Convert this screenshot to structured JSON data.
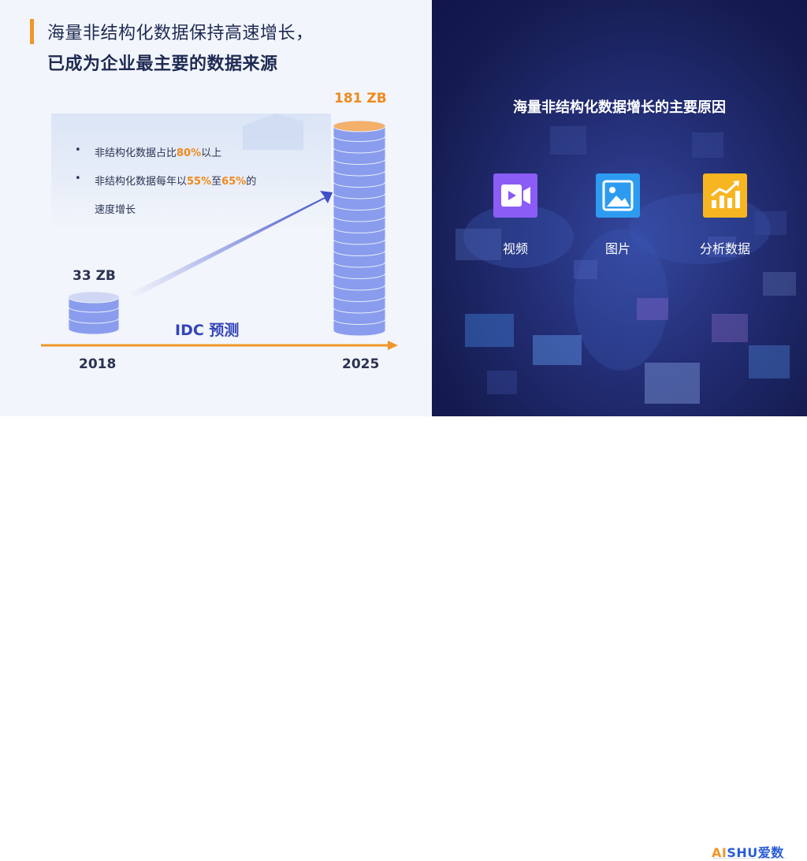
{
  "title": {
    "line1": "海量非结构化数据保持高速增长，",
    "line2": "已成为企业最主要的数据来源"
  },
  "bullets": [
    {
      "pre": "非结构化数据占比",
      "hl1": "80%",
      "mid": "以上",
      "hl2": "",
      "post": ""
    },
    {
      "pre": "非结构化数据每年以",
      "hl1": "55%",
      "mid": "至",
      "hl2": "65%",
      "post": "的"
    }
  ],
  "bullet2_cont": "速度增长",
  "growth": {
    "start_label": "33 ZB",
    "end_label": "181 ZB",
    "source": "IDC 预测",
    "start_year": "2018",
    "end_year": "2025"
  },
  "right_panel": {
    "title": "海量非结构化数据增长的主要原因",
    "items": [
      {
        "label": "视频",
        "icon": "video-icon",
        "color": "#8b5cf6"
      },
      {
        "label": "图片",
        "icon": "image-icon",
        "color": "#2d9cf0"
      },
      {
        "label": "分析数据",
        "icon": "chart-icon",
        "color": "#f7b521"
      }
    ]
  },
  "logo": {
    "ai": "AI",
    "rest": "SHU爱数"
  },
  "colors": {
    "accent_orange": "#f0962a",
    "stack_blue": "#8a9cee",
    "dark_navy": "#1e2a52"
  }
}
